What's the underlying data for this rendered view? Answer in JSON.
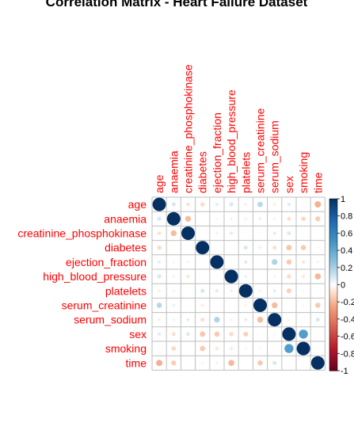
{
  "chart_data": {
    "type": "heatmap",
    "title": "Correlation Matrix - Heart Failure Dataset",
    "variables": [
      "age",
      "anaemia",
      "creatinine_phosphokinase",
      "diabetes",
      "ejection_fraction",
      "high_blood_pressure",
      "platelets",
      "serum_creatinine",
      "serum_sodium",
      "sex",
      "smoking",
      "time"
    ],
    "matrix": [
      [
        1.0,
        0.09,
        -0.08,
        -0.1,
        0.06,
        0.09,
        -0.05,
        0.16,
        -0.05,
        0.07,
        0.02,
        -0.22
      ],
      [
        0.09,
        1.0,
        -0.19,
        -0.01,
        0.03,
        0.04,
        -0.04,
        0.05,
        0.04,
        -0.09,
        -0.11,
        -0.14
      ],
      [
        -0.08,
        -0.19,
        1.0,
        -0.01,
        -0.04,
        -0.07,
        0.02,
        -0.02,
        0.06,
        0.08,
        0.0,
        -0.01
      ],
      [
        -0.1,
        -0.01,
        -0.01,
        1.0,
        0.0,
        -0.01,
        0.09,
        -0.05,
        -0.09,
        -0.16,
        -0.15,
        0.03
      ],
      [
        0.06,
        0.03,
        -0.04,
        0.0,
        1.0,
        0.02,
        0.07,
        -0.01,
        0.18,
        -0.15,
        -0.07,
        0.04
      ],
      [
        0.09,
        0.04,
        -0.07,
        -0.01,
        0.02,
        1.0,
        0.05,
        -0.0,
        0.04,
        -0.1,
        -0.06,
        -0.2
      ],
      [
        -0.05,
        -0.04,
        0.02,
        0.09,
        0.07,
        0.05,
        1.0,
        -0.04,
        0.06,
        -0.13,
        0.03,
        0.01
      ],
      [
        0.16,
        0.05,
        -0.02,
        -0.05,
        -0.01,
        -0.0,
        -0.04,
        1.0,
        -0.19,
        0.01,
        -0.03,
        -0.15
      ],
      [
        -0.05,
        0.04,
        0.06,
        -0.09,
        0.18,
        0.04,
        0.06,
        -0.19,
        1.0,
        -0.03,
        0.0,
        0.09
      ],
      [
        0.07,
        -0.09,
        0.08,
        -0.16,
        -0.15,
        -0.1,
        -0.13,
        0.01,
        -0.03,
        1.0,
        0.45,
        -0.02
      ],
      [
        0.02,
        -0.11,
        0.0,
        -0.15,
        -0.07,
        -0.06,
        0.03,
        -0.03,
        0.0,
        0.45,
        1.0,
        -0.02
      ],
      [
        -0.22,
        -0.14,
        -0.01,
        0.03,
        0.04,
        -0.2,
        0.01,
        -0.15,
        0.09,
        -0.02,
        -0.02,
        1.0
      ]
    ],
    "colorbar": {
      "range": [
        -1,
        1
      ],
      "ticks": [
        "1",
        "0.8",
        "0.6",
        "0.4",
        "0.2",
        "0",
        "-0.2",
        "-0.4",
        "-0.6",
        "-0.8",
        "-1"
      ]
    },
    "colors": {
      "positive_strong": "#053061",
      "positive_mid": "#4393C3",
      "neutral": "#FFFFFF",
      "negative_mid": "#D6604D",
      "negative_strong": "#67001F",
      "label": "#FF0000",
      "grid": "#BEBEBE"
    }
  }
}
